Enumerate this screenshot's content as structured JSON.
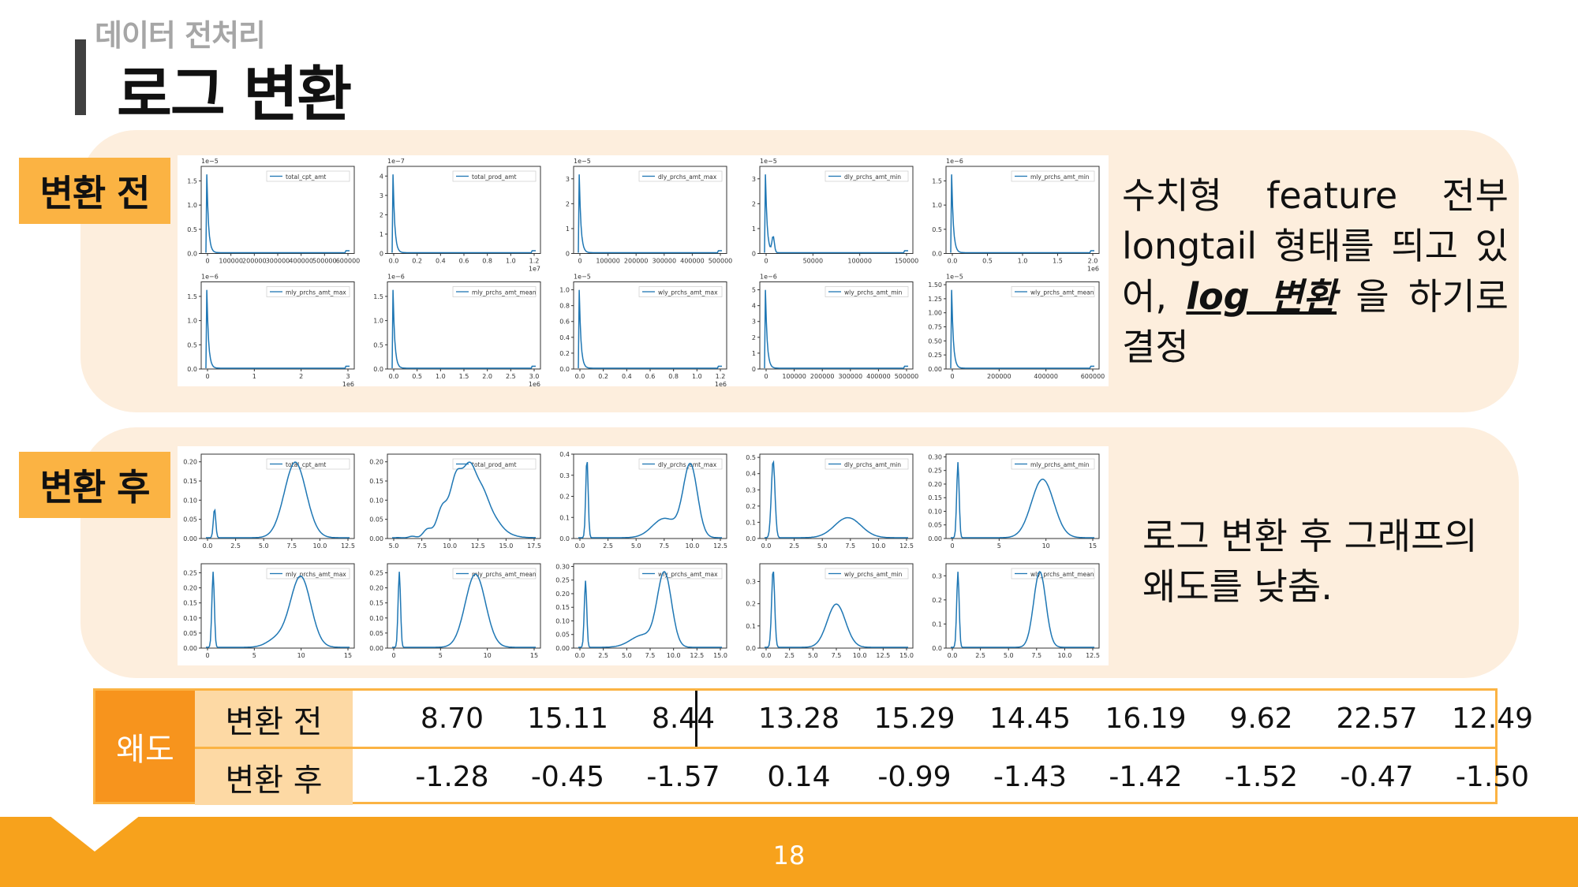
{
  "header": {
    "section": "데이터 전처리",
    "title": "로그 변환"
  },
  "before": {
    "tag": "변환 전",
    "description_parts": [
      "수치형 feature 전부 longtail 형태를 띄고 있어, ",
      "log 변환",
      " 을 하기로 결정"
    ]
  },
  "after": {
    "tag": "변환 후",
    "description": "로그 변환 후 그래프의 왜도를 낮춤."
  },
  "plots_before": [
    {
      "legend": "total_cpt_amt",
      "exp": "1e−5",
      "ylim": [
        0,
        1.8
      ],
      "yticks": [
        "0.0",
        "0.5",
        "1.0",
        "1.5"
      ],
      "xticks": [
        "0",
        "100000",
        "200000",
        "300000",
        "400000",
        "500000",
        "600000"
      ],
      "xoffset": ""
    },
    {
      "legend": "total_prod_amt",
      "exp": "1e−7",
      "ylim": [
        0,
        4.5
      ],
      "yticks": [
        "0",
        "1",
        "2",
        "3",
        "4"
      ],
      "xticks": [
        "0.0",
        "0.2",
        "0.4",
        "0.6",
        "0.8",
        "1.0",
        "1.2"
      ],
      "xoffset": "1e7"
    },
    {
      "legend": "dly_prchs_amt_max",
      "exp": "1e−5",
      "ylim": [
        0,
        3.5
      ],
      "yticks": [
        "0",
        "1",
        "2",
        "3"
      ],
      "xticks": [
        "0",
        "100000",
        "200000",
        "300000",
        "400000",
        "500000"
      ],
      "xoffset": ""
    },
    {
      "legend": "dly_prchs_amt_min",
      "exp": "1e−5",
      "ylim": [
        0,
        3.5
      ],
      "yticks": [
        "0",
        "1",
        "2",
        "3"
      ],
      "xticks": [
        "0",
        "50000",
        "100000",
        "150000"
      ],
      "xoffset": ""
    },
    {
      "legend": "mly_prchs_amt_min",
      "exp": "1e−6",
      "ylim": [
        0,
        1.8
      ],
      "yticks": [
        "0.0",
        "0.5",
        "1.0",
        "1.5"
      ],
      "xticks": [
        "0.0",
        "0.5",
        "1.0",
        "1.5",
        "2.0"
      ],
      "xoffset": "1e6"
    },
    {
      "legend": "mly_prchs_amt_max",
      "exp": "1e−6",
      "ylim": [
        0,
        1.8
      ],
      "yticks": [
        "0.0",
        "0.5",
        "1.0",
        "1.5"
      ],
      "xticks": [
        "0",
        "1",
        "2",
        "3"
      ],
      "xoffset": "1e6"
    },
    {
      "legend": "mly_prchs_amt_mean",
      "exp": "1e−6",
      "ylim": [
        0,
        1.8
      ],
      "yticks": [
        "0.0",
        "0.5",
        "1.0",
        "1.5"
      ],
      "xticks": [
        "0.0",
        "0.5",
        "1.0",
        "1.5",
        "2.0",
        "2.5",
        "3.0"
      ],
      "xoffset": "1e6"
    },
    {
      "legend": "wly_prchs_amt_max",
      "exp": "1e−5",
      "ylim": [
        0,
        1.1
      ],
      "yticks": [
        "0.0",
        "0.2",
        "0.4",
        "0.6",
        "0.8",
        "1.0"
      ],
      "xticks": [
        "0.0",
        "0.2",
        "0.4",
        "0.6",
        "0.8",
        "1.0",
        "1.2"
      ],
      "xoffset": "1e6"
    },
    {
      "legend": "wly_prchs_amt_min",
      "exp": "1e−6",
      "ylim": [
        0,
        5.5
      ],
      "yticks": [
        "0",
        "1",
        "2",
        "3",
        "4",
        "5"
      ],
      "xticks": [
        "0",
        "100000",
        "200000",
        "300000",
        "400000",
        "500000"
      ],
      "xoffset": ""
    },
    {
      "legend": "wly_prchs_amt_mean",
      "exp": "1e−5",
      "ylim": [
        0,
        1.55
      ],
      "yticks": [
        "0.00",
        "0.25",
        "0.50",
        "0.75",
        "1.00",
        "1.25",
        "1.50"
      ],
      "xticks": [
        "0",
        "200000",
        "400000",
        "600000"
      ],
      "xoffset": ""
    }
  ],
  "plots_after": [
    {
      "legend": "total_cpt_amt",
      "ylim": [
        0,
        0.22
      ],
      "yticks": [
        "0.00",
        "0.05",
        "0.10",
        "0.15",
        "0.20"
      ],
      "xticks": [
        "0.0",
        "2.5",
        "5.0",
        "7.5",
        "10.0",
        "12.5"
      ]
    },
    {
      "legend": "total_prod_amt",
      "ylim": [
        0,
        0.22
      ],
      "yticks": [
        "0.00",
        "0.05",
        "0.10",
        "0.15",
        "0.20"
      ],
      "xticks": [
        "5.0",
        "7.5",
        "10.0",
        "12.5",
        "15.0",
        "17.5"
      ]
    },
    {
      "legend": "dly_prchs_amt_max",
      "ylim": [
        0,
        0.4
      ],
      "yticks": [
        "0.0",
        "0.1",
        "0.2",
        "0.3",
        "0.4"
      ],
      "xticks": [
        "0.0",
        "2.5",
        "5.0",
        "7.5",
        "10.0",
        "12.5"
      ]
    },
    {
      "legend": "dly_prchs_amt_min",
      "ylim": [
        0,
        0.52
      ],
      "yticks": [
        "0.0",
        "0.1",
        "0.2",
        "0.3",
        "0.4",
        "0.5"
      ],
      "xticks": [
        "0.0",
        "2.5",
        "5.0",
        "7.5",
        "10.0",
        "12.5"
      ]
    },
    {
      "legend": "mly_prchs_amt_min",
      "ylim": [
        0,
        0.31
      ],
      "yticks": [
        "0.00",
        "0.05",
        "0.10",
        "0.15",
        "0.20",
        "0.25",
        "0.30"
      ],
      "xticks": [
        "0",
        "5",
        "10",
        "15"
      ]
    },
    {
      "legend": "mly_prchs_amt_max",
      "ylim": [
        0,
        0.28
      ],
      "yticks": [
        "0.00",
        "0.05",
        "0.10",
        "0.15",
        "0.20",
        "0.25"
      ],
      "xticks": [
        "0",
        "5",
        "10",
        "15"
      ]
    },
    {
      "legend": "mly_prchs_amt_mean",
      "ylim": [
        0,
        0.28
      ],
      "yticks": [
        "0.00",
        "0.05",
        "0.10",
        "0.15",
        "0.20",
        "0.25"
      ],
      "xticks": [
        "0",
        "5",
        "10",
        "15"
      ]
    },
    {
      "legend": "wly_prchs_amt_max",
      "ylim": [
        0,
        0.31
      ],
      "yticks": [
        "0.00",
        "0.05",
        "0.10",
        "0.15",
        "0.20",
        "0.25",
        "0.30"
      ],
      "xticks": [
        "0.0",
        "2.5",
        "5.0",
        "7.5",
        "10.0",
        "12.5",
        "15.0"
      ]
    },
    {
      "legend": "wly_prchs_amt_min",
      "ylim": [
        0,
        0.38
      ],
      "yticks": [
        "0.0",
        "0.1",
        "0.2",
        "0.3"
      ],
      "xticks": [
        "0.0",
        "2.5",
        "5.0",
        "7.5",
        "10.0",
        "12.5",
        "15.0"
      ]
    },
    {
      "legend": "wly_prchs_amt_mean",
      "ylim": [
        0,
        0.35
      ],
      "yticks": [
        "0.0",
        "0.1",
        "0.2",
        "0.3"
      ],
      "xticks": [
        "0.0",
        "2.5",
        "5.0",
        "7.5",
        "10.0",
        "12.5"
      ]
    }
  ],
  "skewness": {
    "header": "왜도",
    "before_label": "변환 전",
    "after_label": "변환 후",
    "before": [
      "8.70",
      "15.11",
      "8.44",
      "13.28",
      "15.29",
      "14.45",
      "16.19",
      "9.62",
      "22.57",
      "12.49"
    ],
    "after": [
      "-1.28",
      "-0.45",
      "-1.57",
      "0.14",
      "-0.99",
      "-1.43",
      "-1.42",
      "-1.52",
      "-0.47",
      "-1.50"
    ]
  },
  "footer": {
    "page": "18"
  },
  "colors": {
    "accent": "#f7941d",
    "panel": "#fdeedd",
    "tag": "#fbb343",
    "line": "#1f77b4"
  }
}
